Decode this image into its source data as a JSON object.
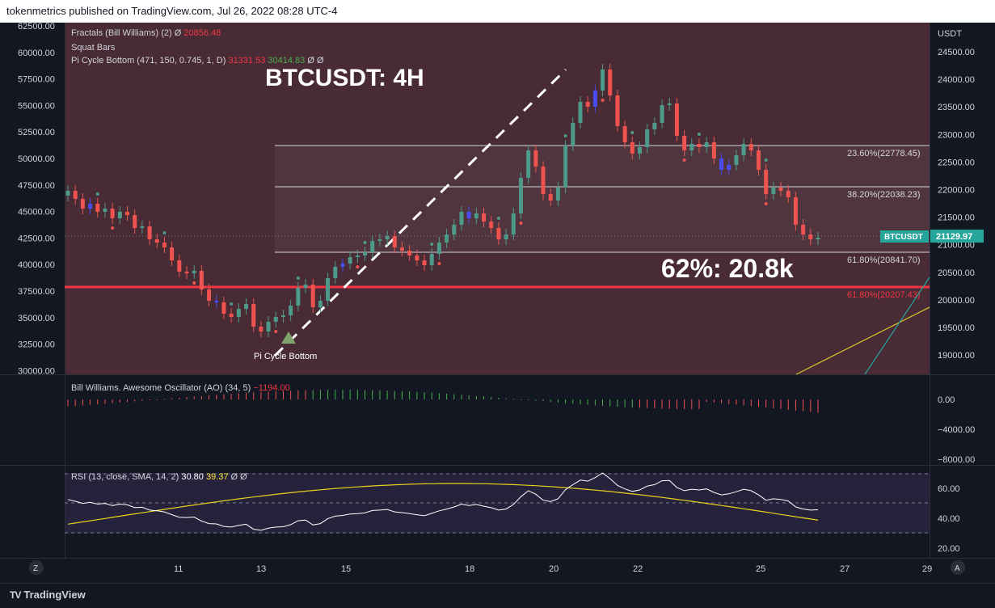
{
  "header": {
    "text": "tokenmetrics published on TradingView.com, Jul 26, 2022 08:28 UTC-4"
  },
  "footer": {
    "brand": "TradingView"
  },
  "indicators": {
    "fractals": {
      "name": "Fractals (Bill Williams) (2)",
      "icon": "Ø",
      "value": "20856.48"
    },
    "squat": {
      "name": "Squat Bars"
    },
    "picycle": {
      "name": "Pi Cycle Bottom (471, 150, 0.745, 1, D)",
      "value1": "31331.53",
      "value2": "30414.83",
      "icon": "Ø Ø"
    },
    "ao": {
      "name": "Bill Williams. Awesome Oscillator (AO) (34, 5)",
      "value": "−1194.00"
    },
    "rsi": {
      "name": "RSI (13, close, SMA, 14, 2)",
      "value1": "30.80",
      "value2": "39.37",
      "icon": "Ø Ø"
    }
  },
  "annotations": {
    "title": "BTCUSDT: 4H",
    "target": "62%: 20.8k",
    "pi_label": "Pi Cycle Bottom"
  },
  "left_axis": [
    "62500.00",
    "60000.00",
    "57500.00",
    "55000.00",
    "52500.00",
    "50000.00",
    "47500.00",
    "45000.00",
    "42500.00",
    "40000.00",
    "37500.00",
    "35000.00",
    "32500.00",
    "30000.00"
  ],
  "right_axis": {
    "unit": "USDT",
    "ticks": [
      "24500.00",
      "24000.00",
      "23500.00",
      "23000.00",
      "22500.00",
      "22000.00",
      "21500.00",
      "21000.00",
      "20500.00",
      "20000.00",
      "19500.00",
      "19000.00"
    ]
  },
  "ao_axis": [
    "0.00",
    "−4000.00",
    "−8000.00"
  ],
  "rsi_axis": [
    "60.00",
    "40.00",
    "20.00"
  ],
  "time_axis": [
    "11",
    "13",
    "15",
    "18",
    "20",
    "22",
    "25",
    "27",
    "29"
  ],
  "fib": [
    {
      "label": "23.60%(22778.45)",
      "color": "#d1d4dc"
    },
    {
      "label": "38.20%(22038.23)",
      "color": "#d1d4dc"
    },
    {
      "label": "61.80%(20841.70)",
      "color": "#d1d4dc"
    },
    {
      "label": "61.80%(20207.43)",
      "color": "#f23645"
    }
  ],
  "price_tag": {
    "symbol": "BTCUSDT",
    "price": "21129.97"
  },
  "corner_buttons": {
    "left": "Z",
    "right": "A"
  },
  "colors": {
    "bull": "#4e9a8a",
    "bear": "#ef5350",
    "squat": "#4a4cf0",
    "band": "#4b2c36",
    "fib_red": "#f23645"
  }
}
